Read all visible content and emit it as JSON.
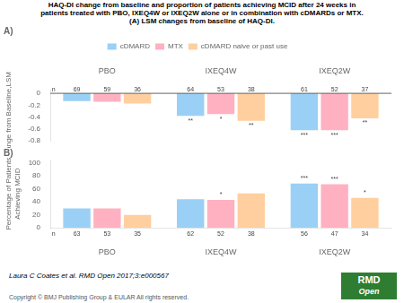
{
  "title": [
    "HAQ-DI change from baseline and proportion of patients achieving MCID after 24 weeks in",
    "patients treated with PBO, IXEQ4W or IXEQ2W alone or in combination with cDMARDs or MTX.",
    "(A) LSM changes from baseline of HAQ-DI."
  ],
  "annotations": [
    {
      "text": "Laura C Coates et al. RMD Open 2017;3:e000567"
    },
    {
      "text": "Copyright © BMJ Publishing Group & EULAR  All rights reserved."
    },
    {
      "text": [
        "RMD",
        "Open"
      ],
      "color": "#2e7d32"
    }
  ],
  "chart_data": [
    {
      "type": "bar",
      "title": "A)",
      "categories": [
        "PBO",
        "IXEQ4W",
        "IXEQ2W"
      ],
      "series": [
        {
          "name": "cDMARD",
          "values": [
            -0.13,
            -0.38,
            -0.62
          ],
          "n": [
            69,
            64,
            61
          ],
          "significance": [
            null,
            "**",
            "***"
          ]
        },
        {
          "name": "MTX",
          "values": [
            -0.14,
            -0.35,
            -0.62
          ],
          "n": [
            59,
            53,
            52
          ],
          "significance": [
            null,
            "*",
            "***"
          ]
        },
        {
          "name": "cDMARD naive or past use",
          "values": [
            -0.17,
            -0.46,
            -0.42
          ],
          "n": [
            36,
            38,
            37
          ],
          "significance": [
            null,
            "**",
            "**"
          ]
        }
      ],
      "n_label": "n",
      "ylabel": "Change from Baseline,LSM",
      "ylim": [
        -0.8,
        0.05
      ],
      "yticks": [
        0,
        -0.2,
        -0.4,
        -0.6,
        -0.8
      ],
      "grid": false,
      "legend": "top"
    },
    {
      "type": "bar",
      "title": "B)",
      "categories": [
        "PBO",
        "IXEQ4W",
        "IXEQ2W"
      ],
      "series": [
        {
          "name": "cDMARD",
          "values": [
            30,
            44,
            68
          ],
          "n": [
            63,
            62,
            56
          ],
          "significance": [
            null,
            null,
            "***"
          ]
        },
        {
          "name": "MTX",
          "values": [
            30,
            43,
            67
          ],
          "n": [
            53,
            52,
            47
          ],
          "significance": [
            null,
            "*",
            "***"
          ]
        },
        {
          "name": "cDMARD naive or past use",
          "values": [
            20,
            53,
            46
          ],
          "n": [
            35,
            38,
            34
          ],
          "significance": [
            null,
            null,
            "*"
          ]
        }
      ],
      "n_label": "n",
      "ylabel": "Percentage of Patients\nAchieving MCID",
      "ylim": [
        0,
        105
      ],
      "yticks": [
        0,
        20,
        40,
        60,
        80,
        100
      ],
      "grid": false
    }
  ]
}
